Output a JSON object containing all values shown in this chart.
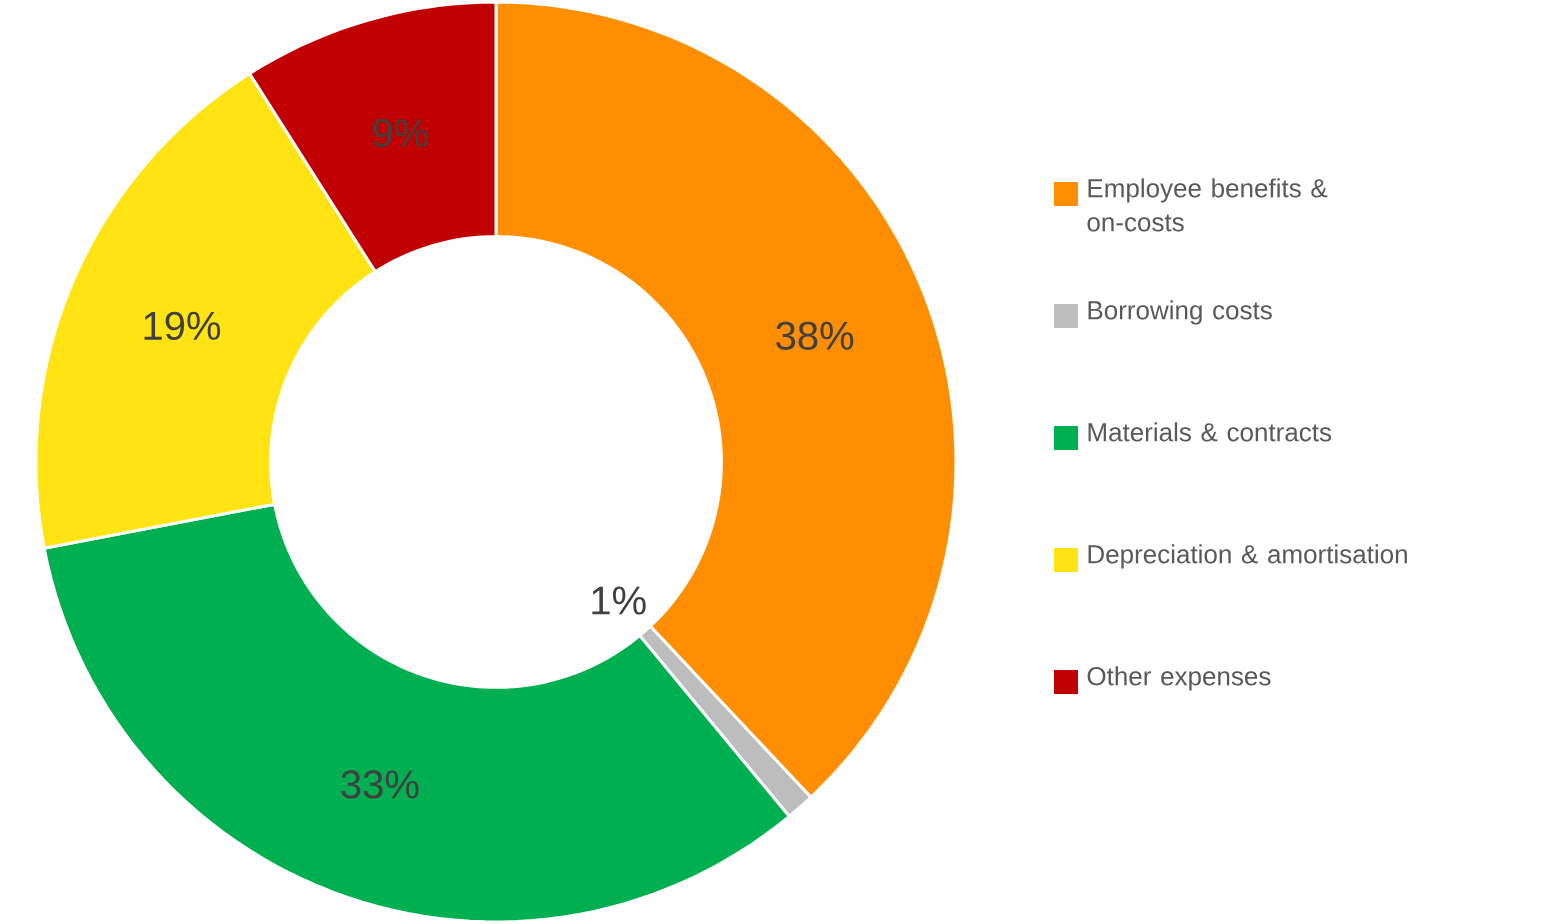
{
  "chart_data": {
    "type": "donut",
    "categories": [
      "Employee benefits & on-costs",
      "Borrowing costs",
      "Materials & contracts",
      "Depreciation & amortisation",
      "Other expenses"
    ],
    "values": [
      38,
      1,
      33,
      19,
      9
    ],
    "colors": [
      "#ff8f00",
      "#bdbdbd",
      "#00b050",
      "#ffe312",
      "#c00000"
    ],
    "value_labels": [
      "38%",
      "1%",
      "33%",
      "19%",
      "9%"
    ],
    "legend": "right"
  }
}
